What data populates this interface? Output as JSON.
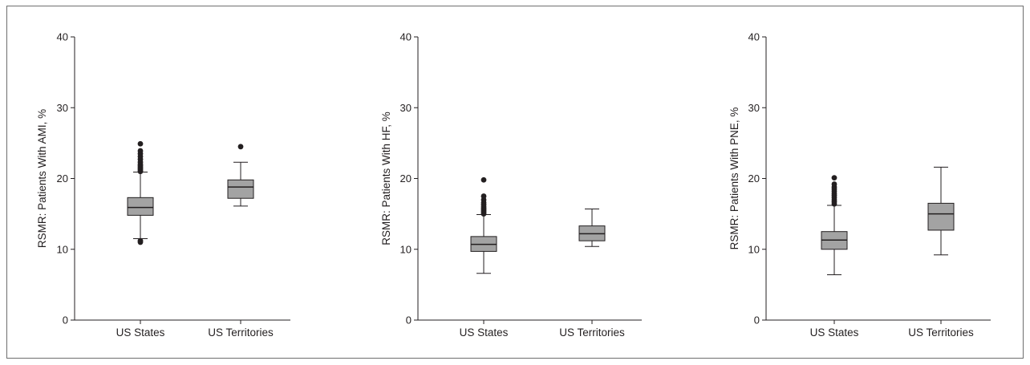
{
  "chart_data": [
    {
      "type": "box",
      "ylabel": "RSMR: Patients With AMI, %",
      "ylim": [
        0,
        40
      ],
      "yticks": [
        0,
        10,
        20,
        30,
        40
      ],
      "categories": [
        "US States",
        "US Territories"
      ],
      "boxes": [
        {
          "whisker_low": 11.5,
          "q1": 14.8,
          "median": 15.9,
          "q3": 17.3,
          "whisker_high": 20.9,
          "outliers": [
            11.0,
            11.2,
            21.0,
            21.2,
            21.4,
            21.6,
            21.8,
            22.0,
            22.3,
            22.7,
            23.1,
            23.5,
            23.9,
            24.9
          ]
        },
        {
          "whisker_low": 16.1,
          "q1": 17.2,
          "median": 18.8,
          "q3": 19.8,
          "whisker_high": 22.3,
          "outliers": [
            24.5
          ]
        }
      ],
      "box_color": "#a3a3a3",
      "grid": false
    },
    {
      "type": "box",
      "ylabel": "RSMR: Patients With HF, %",
      "ylim": [
        0,
        40
      ],
      "yticks": [
        0,
        10,
        20,
        30,
        40
      ],
      "categories": [
        "US States",
        "US Territories"
      ],
      "boxes": [
        {
          "whisker_low": 6.6,
          "q1": 9.7,
          "median": 10.7,
          "q3": 11.8,
          "whisker_high": 14.9,
          "outliers": [
            15.0,
            15.2,
            15.4,
            15.6,
            15.8,
            16.0,
            16.3,
            16.6,
            17.0,
            17.5,
            19.8
          ]
        },
        {
          "whisker_low": 10.4,
          "q1": 11.2,
          "median": 12.2,
          "q3": 13.3,
          "whisker_high": 15.7,
          "outliers": []
        }
      ],
      "box_color": "#a3a3a3",
      "grid": false
    },
    {
      "type": "box",
      "ylabel": "RSMR: Patients With PNE, %",
      "ylim": [
        0,
        40
      ],
      "yticks": [
        0,
        10,
        20,
        30,
        40
      ],
      "categories": [
        "US States",
        "US Territories"
      ],
      "boxes": [
        {
          "whisker_low": 6.4,
          "q1": 10.0,
          "median": 11.3,
          "q3": 12.5,
          "whisker_high": 16.2,
          "outliers": [
            16.4,
            16.7,
            17.0,
            17.3,
            17.6,
            17.9,
            18.2,
            18.5,
            18.8,
            19.2,
            20.1
          ]
        },
        {
          "whisker_low": 9.2,
          "q1": 12.7,
          "median": 15.0,
          "q3": 16.5,
          "whisker_high": 21.6,
          "outliers": []
        }
      ],
      "box_color": "#a3a3a3",
      "grid": false
    }
  ]
}
